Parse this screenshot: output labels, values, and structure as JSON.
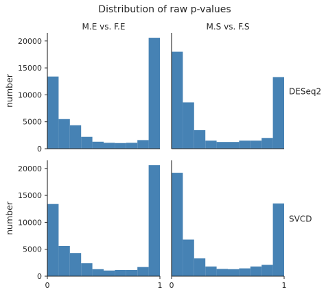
{
  "chart_data": {
    "type": "bar",
    "title": "Distribution of raw p-values",
    "bar_color": "#4682b4",
    "ylabel": "number",
    "ylim": [
      0,
      21500
    ],
    "xlim": [
      0,
      1
    ],
    "yticks": [
      0,
      5000,
      10000,
      15000,
      20000
    ],
    "xticks": [
      0,
      1
    ],
    "bin_width": 0.1,
    "bin_starts": [
      0,
      0.1,
      0.2,
      0.3,
      0.4,
      0.5,
      0.6,
      0.7,
      0.8,
      0.9
    ],
    "columns": [
      "M.E vs. F.E",
      "M.S vs. F.S"
    ],
    "rows": [
      "DESeq2",
      "SVCD"
    ],
    "panels": [
      {
        "row": "DESeq2",
        "col": "M.E vs. F.E",
        "values": [
          13400,
          5500,
          4350,
          2200,
          1300,
          1100,
          1050,
          1100,
          1600,
          20600
        ]
      },
      {
        "row": "DESeq2",
        "col": "M.S vs. F.S",
        "values": [
          18000,
          8600,
          3450,
          1500,
          1250,
          1250,
          1500,
          1500,
          2000,
          13300
        ]
      },
      {
        "row": "SVCD",
        "col": "M.E vs. F.E",
        "values": [
          13400,
          5600,
          4300,
          2400,
          1300,
          1050,
          1150,
          1150,
          1700,
          20600
        ]
      },
      {
        "row": "SVCD",
        "col": "M.S vs. F.S",
        "values": [
          19200,
          6800,
          3300,
          1800,
          1350,
          1300,
          1450,
          1800,
          2100,
          13500
        ]
      }
    ]
  }
}
